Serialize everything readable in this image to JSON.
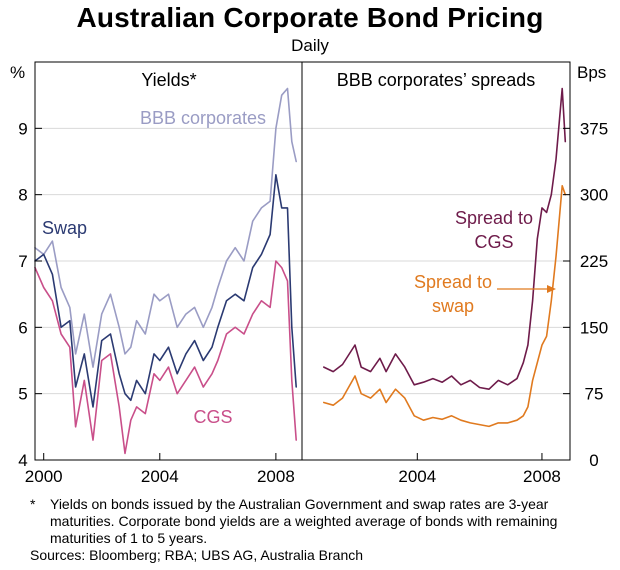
{
  "title": "Australian Corporate Bond Pricing",
  "subtitle": "Daily",
  "footnote_marker": "*",
  "footnote": "Yields on bonds issued by the Australian Government and swap rates are 3-year maturities. Corporate bond yields are a weighted average of bonds with remaining maturities of 1 to 5 years.",
  "sources": "Sources: Bloomberg; RBA; UBS AG, Australia Branch",
  "colors": {
    "bbb": "#9a9cc4",
    "swap": "#2b3a72",
    "cgs": "#c94f8a",
    "spread_cgs": "#6e1b4a",
    "spread_swap": "#e07a1f"
  },
  "chart_data": [
    {
      "type": "line",
      "panel_title": "Yields*",
      "y_unit": "%",
      "ylim": [
        4,
        10
      ],
      "yticks": [
        4,
        5,
        6,
        7,
        8,
        9
      ],
      "xlim": [
        1999.7,
        2008.9
      ],
      "xticks": [
        2000,
        2004,
        2008
      ],
      "series": [
        {
          "name": "BBB corporates",
          "label_text": "BBB corporates",
          "color": "#9a9cc4",
          "x": [
            1999.7,
            2000.0,
            2000.3,
            2000.6,
            2000.9,
            2001.1,
            2001.4,
            2001.7,
            2002.0,
            2002.3,
            2002.6,
            2002.8,
            2003.0,
            2003.2,
            2003.5,
            2003.8,
            2004.0,
            2004.3,
            2004.6,
            2004.9,
            2005.2,
            2005.5,
            2005.8,
            2006.0,
            2006.3,
            2006.6,
            2006.9,
            2007.2,
            2007.5,
            2007.8,
            2008.0,
            2008.2,
            2008.4,
            2008.55,
            2008.7
          ],
          "y": [
            7.2,
            7.1,
            7.3,
            6.6,
            6.3,
            5.6,
            6.2,
            5.4,
            6.2,
            6.5,
            6.0,
            5.6,
            5.7,
            6.1,
            5.9,
            6.5,
            6.4,
            6.5,
            6.0,
            6.2,
            6.3,
            6.0,
            6.3,
            6.6,
            7.0,
            7.2,
            7.0,
            7.6,
            7.8,
            7.9,
            9.0,
            9.5,
            9.6,
            8.8,
            8.5
          ]
        },
        {
          "name": "Swap",
          "label_text": "Swap",
          "color": "#2b3a72",
          "x": [
            1999.7,
            2000.0,
            2000.3,
            2000.6,
            2000.9,
            2001.1,
            2001.4,
            2001.7,
            2002.0,
            2002.3,
            2002.6,
            2002.8,
            2003.0,
            2003.2,
            2003.5,
            2003.8,
            2004.0,
            2004.3,
            2004.6,
            2004.9,
            2005.2,
            2005.5,
            2005.8,
            2006.0,
            2006.3,
            2006.6,
            2006.9,
            2007.2,
            2007.5,
            2007.8,
            2008.0,
            2008.2,
            2008.4,
            2008.55,
            2008.7
          ],
          "y": [
            7.0,
            7.1,
            6.8,
            6.0,
            6.1,
            5.1,
            5.6,
            4.8,
            5.8,
            5.9,
            5.3,
            5.0,
            4.9,
            5.2,
            5.0,
            5.6,
            5.5,
            5.7,
            5.3,
            5.6,
            5.8,
            5.5,
            5.7,
            6.0,
            6.4,
            6.5,
            6.4,
            6.9,
            7.1,
            7.4,
            8.3,
            7.8,
            7.8,
            6.0,
            5.1
          ]
        },
        {
          "name": "CGS",
          "label_text": "CGS",
          "color": "#c94f8a",
          "x": [
            1999.7,
            2000.0,
            2000.3,
            2000.6,
            2000.9,
            2001.1,
            2001.4,
            2001.7,
            2002.0,
            2002.3,
            2002.6,
            2002.8,
            2003.0,
            2003.2,
            2003.5,
            2003.8,
            2004.0,
            2004.3,
            2004.6,
            2004.9,
            2005.2,
            2005.5,
            2005.8,
            2006.0,
            2006.3,
            2006.6,
            2006.9,
            2007.2,
            2007.5,
            2007.8,
            2008.0,
            2008.2,
            2008.4,
            2008.55,
            2008.7
          ],
          "y": [
            6.9,
            6.6,
            6.4,
            5.9,
            5.7,
            4.5,
            5.2,
            4.3,
            5.5,
            5.6,
            4.8,
            4.1,
            4.6,
            4.8,
            4.7,
            5.3,
            5.2,
            5.4,
            5.0,
            5.2,
            5.4,
            5.1,
            5.3,
            5.5,
            5.9,
            6.0,
            5.9,
            6.2,
            6.4,
            6.3,
            7.0,
            6.9,
            6.7,
            5.2,
            4.3
          ]
        }
      ]
    },
    {
      "type": "line",
      "panel_title": "BBB corporates’ spreads",
      "y_unit": "Bps",
      "ylim": [
        0,
        450
      ],
      "yticks": [
        0,
        75,
        150,
        225,
        300,
        375
      ],
      "xlim": [
        2000.3,
        2008.9
      ],
      "xticks": [
        2004,
        2008
      ],
      "annotation_arrow": "Spread to swap",
      "series": [
        {
          "name": "Spread to CGS",
          "label_line1": "Spread to",
          "label_line2": "CGS",
          "color": "#6e1b4a",
          "x": [
            2001.0,
            2001.3,
            2001.6,
            2002.0,
            2002.2,
            2002.5,
            2002.8,
            2003.0,
            2003.3,
            2003.6,
            2003.9,
            2004.2,
            2004.5,
            2004.8,
            2005.1,
            2005.4,
            2005.7,
            2006.0,
            2006.3,
            2006.6,
            2006.9,
            2007.2,
            2007.4,
            2007.55,
            2007.7,
            2007.85,
            2008.0,
            2008.15,
            2008.3,
            2008.45,
            2008.55,
            2008.65,
            2008.75
          ],
          "y": [
            105,
            100,
            108,
            130,
            105,
            100,
            115,
            100,
            120,
            105,
            85,
            88,
            92,
            88,
            95,
            85,
            90,
            82,
            80,
            90,
            85,
            92,
            110,
            130,
            180,
            250,
            285,
            280,
            300,
            340,
            380,
            420,
            360
          ]
        },
        {
          "name": "Spread to swap",
          "label_line1": "Spread to",
          "label_line2": "swap",
          "color": "#e07a1f",
          "x": [
            2001.0,
            2001.3,
            2001.6,
            2002.0,
            2002.2,
            2002.5,
            2002.8,
            2003.0,
            2003.3,
            2003.6,
            2003.9,
            2004.2,
            2004.5,
            2004.8,
            2005.1,
            2005.4,
            2005.7,
            2006.0,
            2006.3,
            2006.6,
            2006.9,
            2007.2,
            2007.4,
            2007.55,
            2007.7,
            2007.85,
            2008.0,
            2008.15,
            2008.3,
            2008.45,
            2008.55,
            2008.65,
            2008.75
          ],
          "y": [
            65,
            62,
            70,
            95,
            75,
            70,
            80,
            65,
            80,
            70,
            50,
            45,
            48,
            46,
            50,
            45,
            42,
            40,
            38,
            42,
            42,
            45,
            50,
            60,
            90,
            110,
            130,
            140,
            180,
            230,
            270,
            310,
            300
          ]
        }
      ]
    }
  ],
  "x_tick_labels_left": [
    "2000",
    "2004",
    "2008"
  ],
  "x_tick_labels_right": [
    "2004",
    "2008"
  ],
  "y_tick_labels_left": [
    "4",
    "5",
    "6",
    "7",
    "8",
    "9"
  ],
  "y_tick_labels_right": [
    "0",
    "75",
    "150",
    "225",
    "300",
    "375"
  ]
}
